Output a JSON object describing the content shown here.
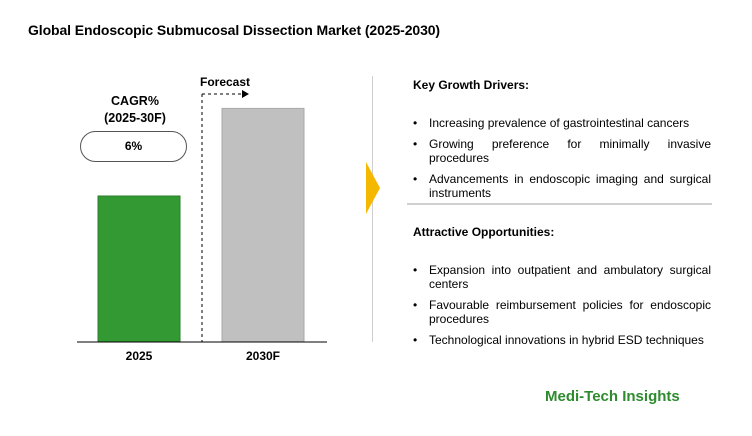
{
  "title": "Global Endoscopic Submucosal Dissection Market (2025-2030)",
  "cagr": {
    "label_line1": "CAGR%",
    "label_line2": "(2025-30F)",
    "value": "6%"
  },
  "forecast_label": "Forecast",
  "chart_data": {
    "type": "bar",
    "categories": [
      "2025",
      "2030F"
    ],
    "values": [
      1.0,
      1.6
    ],
    "value_note": "relative bar heights (no axis scale shown)",
    "colors": [
      "#339933",
      "#c0c0c0"
    ],
    "title": "Global Endoscopic Submucosal Dissection Market (2025-2030)",
    "xlabel": "",
    "ylabel": "",
    "grid": false
  },
  "drivers": {
    "title": "Key Growth Drivers:",
    "items": [
      "Increasing prevalence of gastrointestinal cancers",
      "Growing preference for minimally invasive procedures",
      "Advancements in endoscopic imaging and surgical instruments"
    ]
  },
  "opportunities": {
    "title": "Attractive Opportunities:",
    "items": [
      "Expansion into outpatient and ambulatory surgical centers",
      "Favourable reimbursement policies for endoscopic procedures",
      "Technological innovations in hybrid ESD techniques"
    ]
  },
  "brand": "Medi-Tech Insights",
  "colors": {
    "accent_arrow": "#f5b800",
    "brand": "#2e8b2e"
  }
}
